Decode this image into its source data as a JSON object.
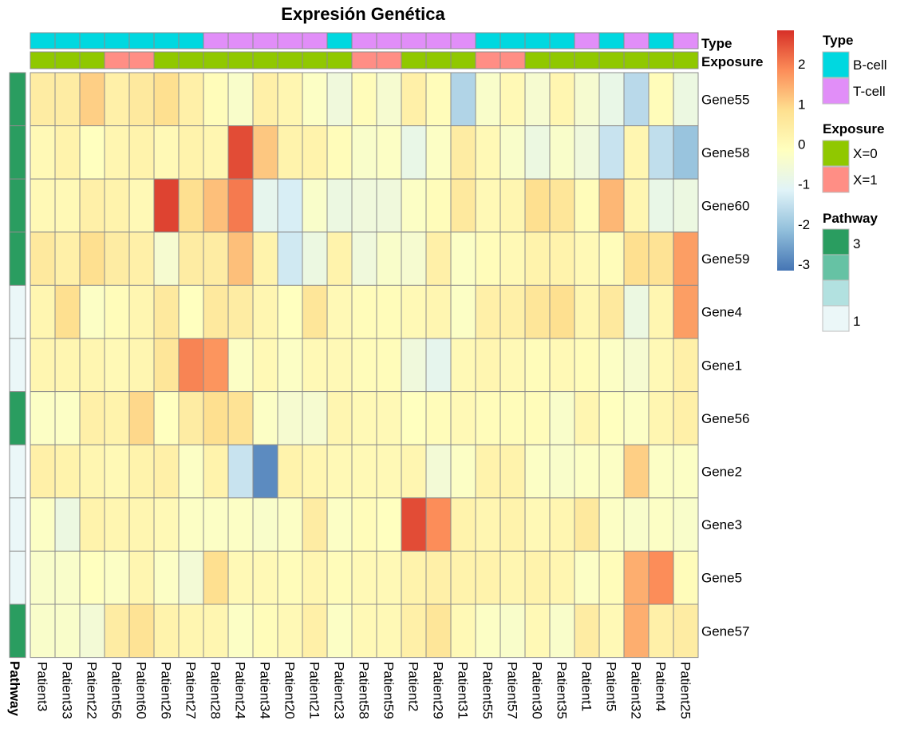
{
  "chart_data": {
    "type": "heatmap",
    "title": "Expresión Genética",
    "columns": [
      "Patient3",
      "Patient33",
      "Patient22",
      "Patient56",
      "Patient60",
      "Patient26",
      "Patient27",
      "Patient28",
      "Patient24",
      "Patient34",
      "Patient20",
      "Patient21",
      "Patient23",
      "Patient58",
      "Patient59",
      "Patient2",
      "Patient29",
      "Patient31",
      "Patient55",
      "Patient57",
      "Patient30",
      "Patient35",
      "Patient1",
      "Patient5",
      "Patient32",
      "Patient4",
      "Patient25"
    ],
    "rows": [
      "Gene55",
      "Gene58",
      "Gene60",
      "Gene59",
      "Gene4",
      "Gene1",
      "Gene56",
      "Gene2",
      "Gene3",
      "Gene5",
      "Gene57"
    ],
    "values": [
      [
        0.6,
        0.6,
        1.2,
        0.5,
        0.7,
        1.0,
        0.5,
        0.1,
        -0.2,
        0.5,
        0.3,
        -0.1,
        -0.5,
        0.1,
        -0.3,
        0.5,
        0.1,
        -1.6,
        -0.2,
        0.2,
        -0.3,
        0.3,
        -0.3,
        -0.7,
        -1.5,
        0.1,
        -0.6
      ],
      [
        0.2,
        0.4,
        0.0,
        0.3,
        0.4,
        0.2,
        0.4,
        0.3,
        2.7,
        1.3,
        0.4,
        0.4,
        0.1,
        -0.2,
        -0.1,
        -0.7,
        -0.1,
        0.6,
        0.2,
        -0.2,
        -0.6,
        -0.2,
        -0.5,
        -1.3,
        0.3,
        -1.4,
        -1.9
      ],
      [
        0.2,
        0.2,
        0.5,
        0.4,
        0.2,
        2.8,
        1.0,
        1.4,
        2.2,
        -0.8,
        -1.1,
        -0.2,
        -0.6,
        -0.5,
        -0.5,
        -0.1,
        0.1,
        0.7,
        0.2,
        0.3,
        1.0,
        0.8,
        0.1,
        1.5,
        0.3,
        -0.7,
        -0.6
      ],
      [
        0.7,
        0.5,
        1.0,
        0.6,
        0.5,
        -0.3,
        0.6,
        0.6,
        1.4,
        0.4,
        -1.2,
        -0.6,
        0.4,
        -0.5,
        -0.2,
        -0.3,
        0.5,
        -0.1,
        0.1,
        0.2,
        0.4,
        0.4,
        0.2,
        0.1,
        1.0,
        0.9,
        1.8
      ],
      [
        0.3,
        1.0,
        -0.1,
        0.1,
        0.3,
        0.7,
        0.0,
        0.7,
        0.6,
        0.3,
        0.0,
        0.8,
        0.2,
        0.1,
        0.1,
        0.2,
        0.3,
        -0.1,
        0.5,
        0.5,
        0.8,
        1.0,
        0.3,
        0.7,
        -0.6,
        0.3,
        1.8
      ],
      [
        0.3,
        0.3,
        0.3,
        0.2,
        0.3,
        0.8,
        2.1,
        1.9,
        -0.1,
        0.2,
        -0.1,
        0.2,
        0.2,
        0.1,
        0.1,
        -0.5,
        -0.8,
        0.2,
        0.3,
        0.2,
        0.1,
        0.2,
        0.1,
        -0.1,
        -0.3,
        0.2,
        0.5
      ],
      [
        -0.1,
        -0.1,
        0.5,
        0.4,
        1.1,
        0.0,
        0.6,
        1.0,
        0.9,
        -0.1,
        -0.3,
        -0.3,
        0.3,
        0.2,
        0.2,
        0.0,
        0.1,
        0.2,
        0.1,
        0.1,
        0.1,
        -0.2,
        0.3,
        0.0,
        -0.1,
        0.3,
        0.5
      ],
      [
        0.5,
        0.4,
        0.3,
        0.2,
        0.4,
        0.5,
        -0.1,
        0.4,
        -1.3,
        -2.7,
        0.4,
        0.3,
        0.2,
        0.2,
        0.2,
        0.3,
        -0.4,
        -0.1,
        0.4,
        0.4,
        -0.1,
        -0.2,
        -0.1,
        -0.1,
        1.2,
        -0.1,
        -0.1
      ],
      [
        -0.1,
        -0.6,
        0.4,
        0.3,
        0.3,
        0.2,
        -0.1,
        -0.1,
        -0.1,
        -0.2,
        -0.1,
        0.6,
        -0.1,
        0.1,
        0.0,
        2.7,
        2.0,
        0.4,
        0.3,
        0.4,
        0.2,
        0.3,
        0.7,
        -0.1,
        -0.2,
        -0.1,
        -0.2
      ],
      [
        -0.2,
        -0.2,
        0.0,
        -0.1,
        0.3,
        -0.1,
        -0.4,
        1.0,
        0.2,
        0.2,
        0.1,
        0.3,
        0.1,
        0.2,
        0.2,
        0.4,
        0.5,
        0.4,
        0.4,
        0.3,
        0.4,
        0.3,
        -0.1,
        0.1,
        1.6,
        2.0,
        0.1
      ],
      [
        -0.2,
        -0.2,
        -0.4,
        0.6,
        0.9,
        0.4,
        0.3,
        0.3,
        -0.1,
        0.1,
        0.2,
        0.5,
        -0.1,
        0.2,
        0.2,
        0.5,
        0.8,
        0.2,
        -0.1,
        -0.2,
        0.2,
        -0.2,
        0.6,
        0.2,
        1.6,
        0.5,
        0.6
      ]
    ],
    "color_legend": {
      "ticks": [
        2,
        1,
        0,
        -1,
        -2,
        -3
      ],
      "range": [
        -3,
        3
      ],
      "colors": [
        "#4575b4",
        "#91bfdb",
        "#e0f3f8",
        "#ffffbf",
        "#fee090",
        "#fc8d59",
        "#d73027"
      ]
    },
    "annotations": {
      "type": {
        "label": "Type",
        "values": [
          "B-cell",
          "B-cell",
          "B-cell",
          "B-cell",
          "B-cell",
          "B-cell",
          "B-cell",
          "T-cell",
          "T-cell",
          "T-cell",
          "T-cell",
          "T-cell",
          "B-cell",
          "T-cell",
          "T-cell",
          "T-cell",
          "T-cell",
          "T-cell",
          "B-cell",
          "B-cell",
          "B-cell",
          "B-cell",
          "T-cell",
          "B-cell",
          "T-cell",
          "B-cell",
          "T-cell"
        ]
      },
      "exposure": {
        "label": "Exposure",
        "values": [
          "X=0",
          "X=0",
          "X=0",
          "X=1",
          "X=1",
          "X=0",
          "X=0",
          "X=0",
          "X=0",
          "X=0",
          "X=0",
          "X=0",
          "X=0",
          "X=1",
          "X=1",
          "X=0",
          "X=0",
          "X=0",
          "X=1",
          "X=1",
          "X=0",
          "X=0",
          "X=0",
          "X=0",
          "X=0",
          "X=0",
          "X=0"
        ]
      },
      "pathway": {
        "label": "Pathway",
        "values": [
          3,
          3,
          3,
          3,
          1,
          1,
          3,
          1,
          1,
          1,
          3
        ]
      }
    },
    "legends": {
      "type": {
        "title": "Type",
        "items": [
          {
            "label": "B-cell",
            "color": "#00d8e0"
          },
          {
            "label": "T-cell",
            "color": "#e18ef8"
          }
        ]
      },
      "exposure": {
        "title": "Exposure",
        "items": [
          {
            "label": "X=0",
            "color": "#90c800"
          },
          {
            "label": "X=1",
            "color": "#ff8e85"
          }
        ]
      },
      "pathway": {
        "title": "Pathway",
        "swatches": [
          "#2a9d60",
          "#66c2a4",
          "#b2e1e0",
          "#ebf7f8"
        ],
        "labels": [
          "3",
          "1"
        ]
      }
    }
  }
}
